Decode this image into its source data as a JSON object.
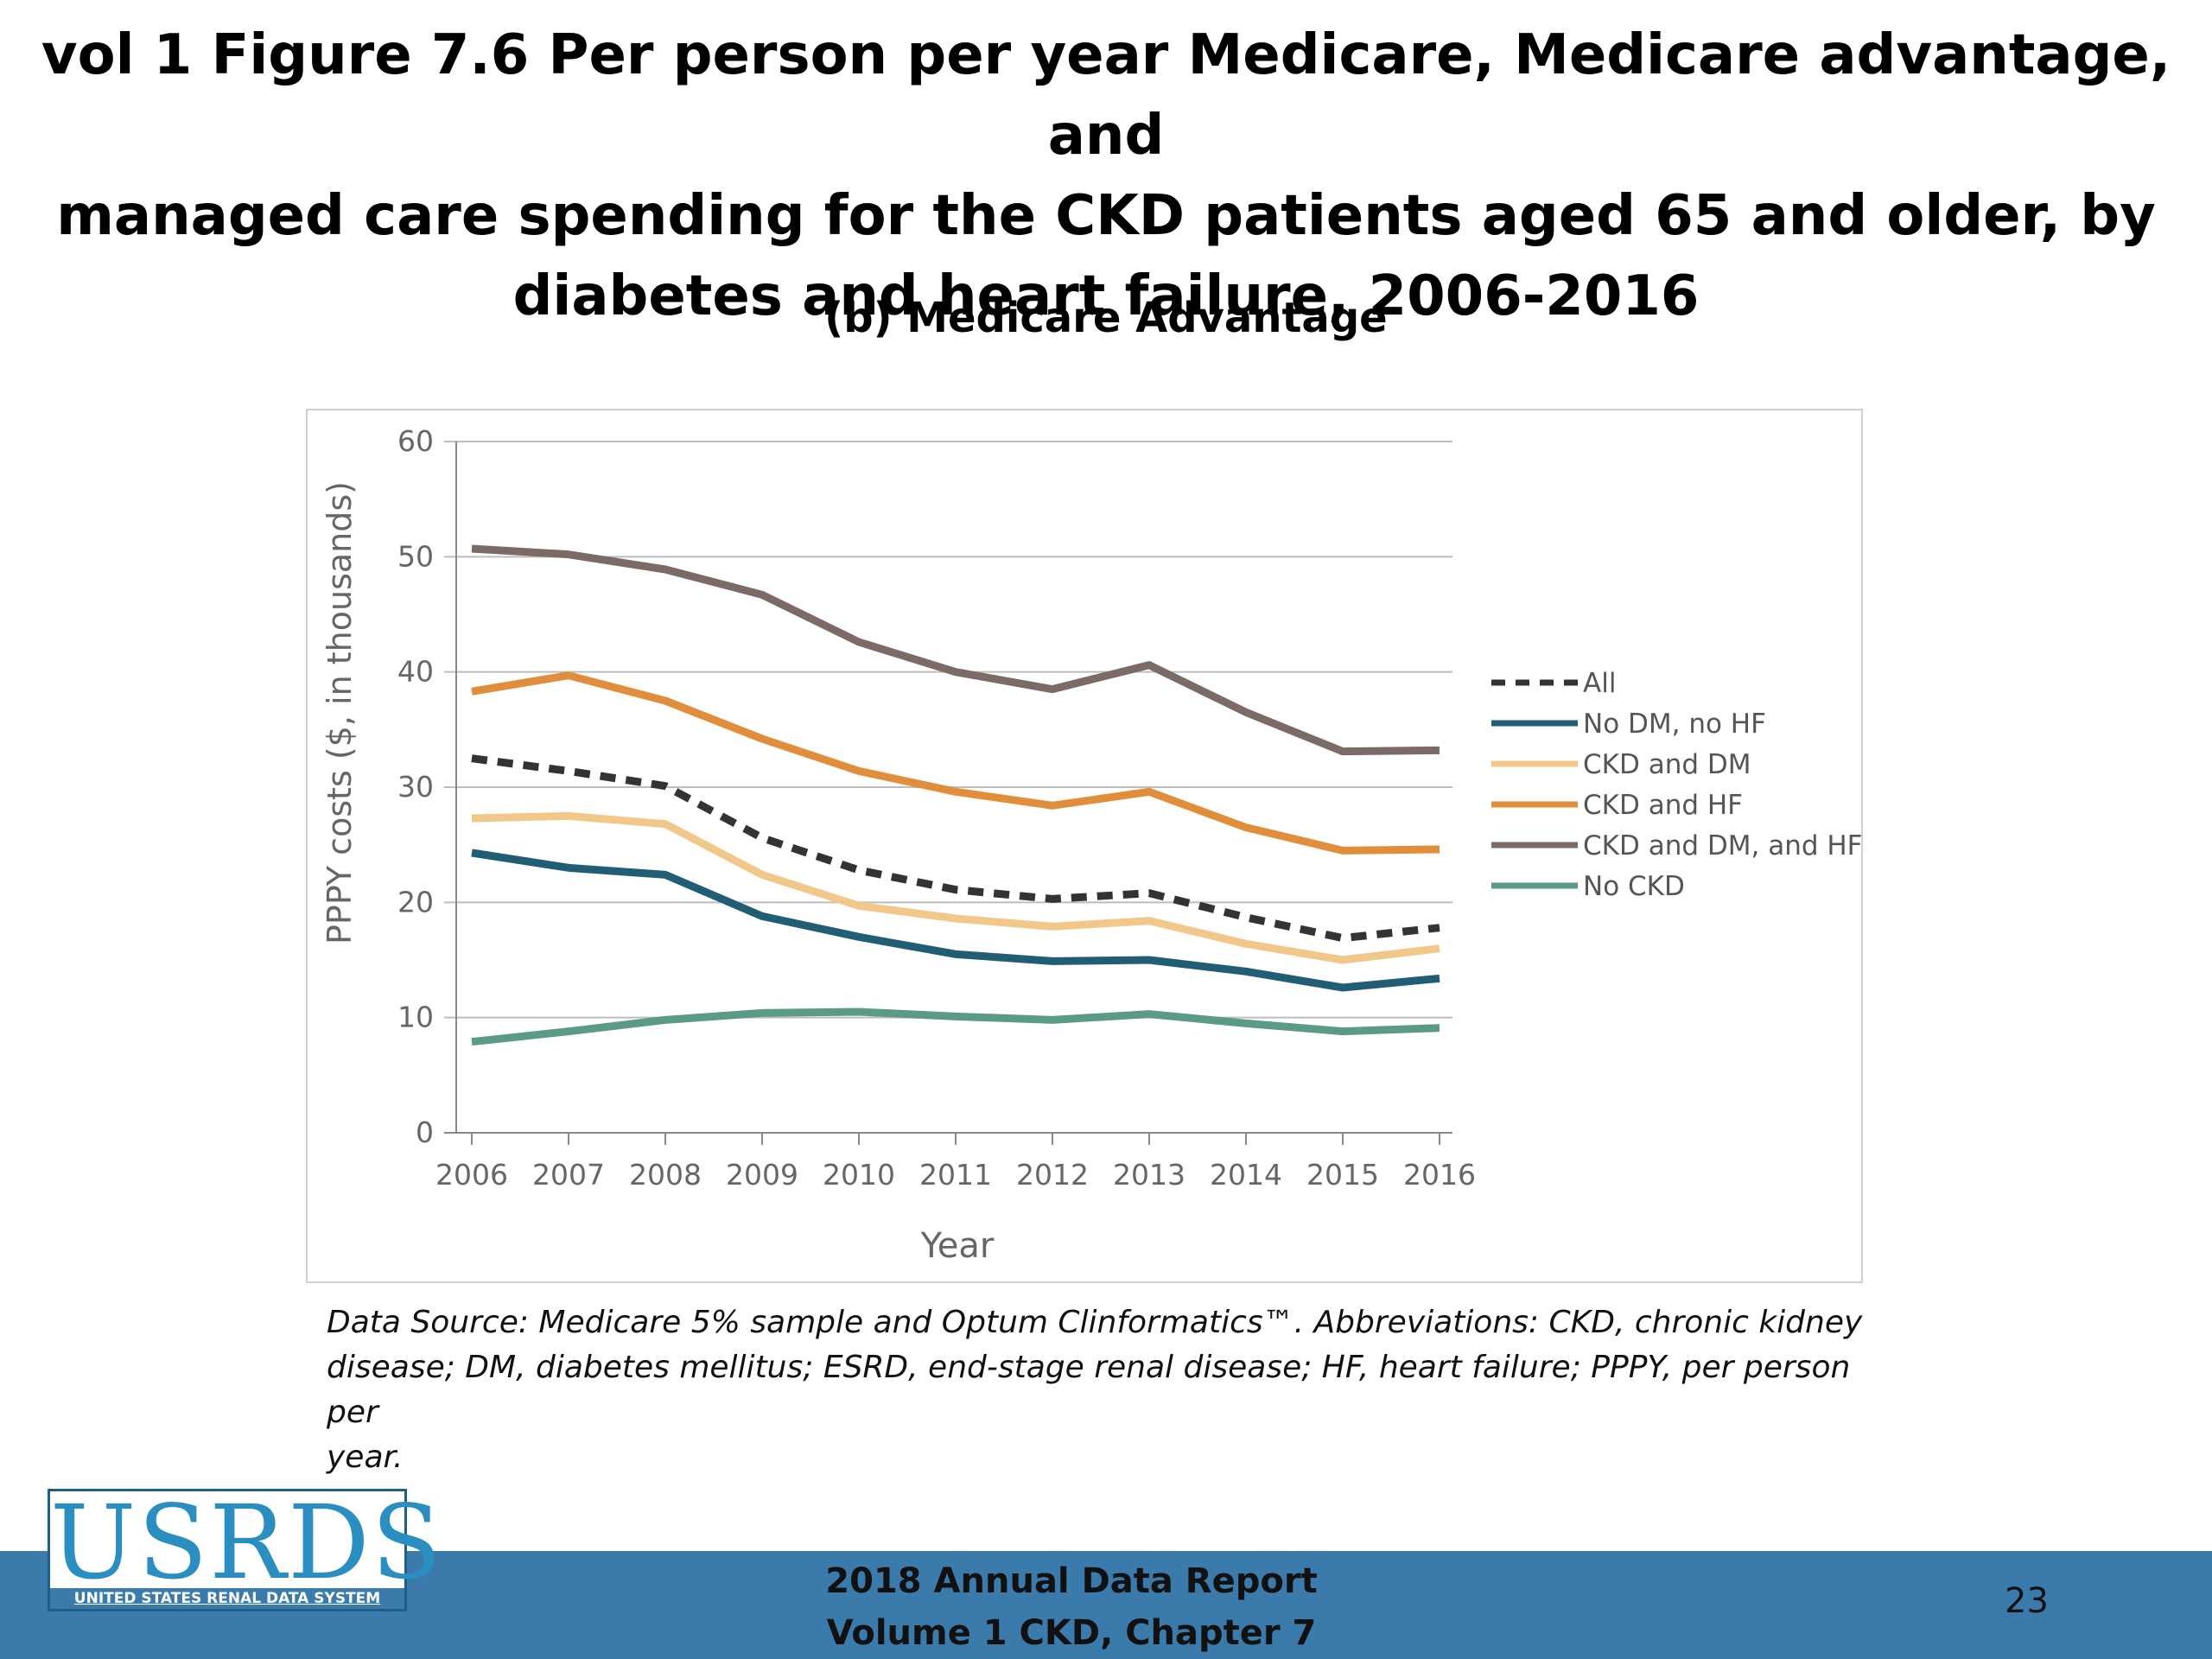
{
  "slide": {
    "title_line1": "vol 1 Figure 7.6 Per person per year Medicare, Medicare advantage, and",
    "title_line2": "managed care spending for the CKD patients aged 65 and older, by",
    "title_line3": "diabetes and heart failure, 2006-2016",
    "source_line1": "Data Source: Medicare 5% sample and Optum Clinformatics™. Abbreviations: CKD, chronic kidney",
    "source_line2": "disease; DM, diabetes mellitus; ESRD, end-stage renal disease; HF, heart failure; PPPY, per person per",
    "source_line3": "year.",
    "footer_line1": "2018 Annual Data Report",
    "footer_line2": "Volume 1 CKD, Chapter 7",
    "page_number": "23",
    "logo_main": "USRDS",
    "logo_sub": "UNITED STATES RENAL DATA SYSTEM",
    "footer_color": "#3a7bab"
  },
  "chart_data": {
    "type": "line",
    "title": "(b) Medicare Advantage",
    "xlabel": "Year",
    "ylabel": "PPPY costs ($, in thousands)",
    "ylim": [
      0,
      60
    ],
    "yticks": [
      0,
      10,
      20,
      30,
      40,
      50,
      60
    ],
    "grid": true,
    "legend_position": "right",
    "x": [
      "2006",
      "2007",
      "2008",
      "2009",
      "2010",
      "2011",
      "2012",
      "2013",
      "2014",
      "2015",
      "2016"
    ],
    "series": [
      {
        "name": "All",
        "color": "#333333",
        "dashed": true,
        "values": [
          32.5,
          31.4,
          30.1,
          25.6,
          22.8,
          21.1,
          20.3,
          20.8,
          18.7,
          16.9,
          17.8
        ]
      },
      {
        "name": "No DM, no HF",
        "color": "#215d74",
        "dashed": false,
        "values": [
          24.3,
          23.0,
          22.4,
          18.8,
          17.0,
          15.5,
          14.9,
          15.0,
          14.0,
          12.6,
          13.4
        ]
      },
      {
        "name": "CKD and DM",
        "color": "#f2c88a",
        "dashed": false,
        "values": [
          27.3,
          27.5,
          26.8,
          22.4,
          19.7,
          18.6,
          17.9,
          18.4,
          16.4,
          15.0,
          16.0
        ]
      },
      {
        "name": "CKD and HF",
        "color": "#e08e3c",
        "dashed": false,
        "values": [
          38.3,
          39.7,
          37.5,
          34.2,
          31.4,
          29.6,
          28.4,
          29.6,
          26.5,
          24.5,
          24.6
        ]
      },
      {
        "name": "CKD and DM, and HF",
        "color": "#7b6a66",
        "dashed": false,
        "values": [
          50.7,
          50.2,
          48.9,
          46.7,
          42.6,
          40.0,
          38.5,
          40.6,
          36.5,
          33.1,
          33.2
        ]
      },
      {
        "name": "No CKD",
        "color": "#5b9a87",
        "dashed": false,
        "values": [
          7.9,
          8.8,
          9.8,
          10.4,
          10.5,
          10.1,
          9.8,
          10.3,
          9.5,
          8.8,
          9.1
        ]
      }
    ]
  }
}
